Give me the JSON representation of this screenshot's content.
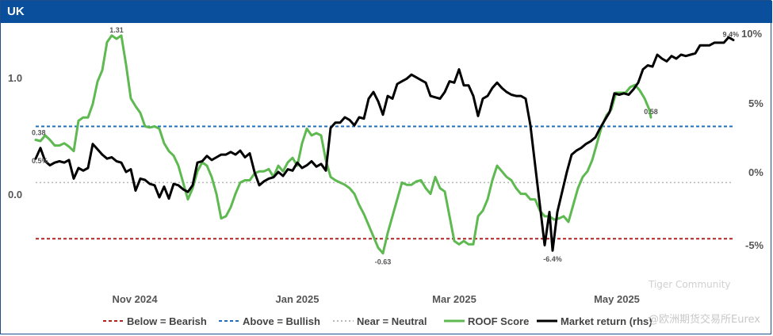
{
  "chart_data": {
    "type": "line",
    "title": "UK",
    "x_ticks": [
      "Nov 2024",
      "Jan 2025",
      "Mar 2025",
      "May 2025"
    ],
    "y_left": {
      "ticks": [
        "1.0",
        "0.0"
      ],
      "ylim": [
        -0.95,
        1.4
      ]
    },
    "y_right": {
      "ticks": [
        "10%",
        "5%",
        "0%",
        "-5%"
      ],
      "ylim": [
        -9.3,
        10.5
      ]
    },
    "reference_lines": [
      {
        "name": "Below = Bearish",
        "value": -0.5,
        "color": "#b22222",
        "style": "dashed"
      },
      {
        "name": "Above = Bullish",
        "value": 0.5,
        "color": "#1f6fc0",
        "style": "dashed"
      },
      {
        "name": "Near = Neutral",
        "value": 0.0,
        "color": "#b8b8b8",
        "style": "dotted"
      }
    ],
    "series": [
      {
        "name": "ROOF Score",
        "axis": "left",
        "color": "#5db950",
        "points": [
          [
            0,
            0.38
          ],
          [
            6,
            0.37
          ],
          [
            12,
            0.42
          ],
          [
            18,
            0.38
          ],
          [
            24,
            0.33
          ],
          [
            30,
            0.33
          ],
          [
            36,
            0.35
          ],
          [
            42,
            0.32
          ],
          [
            48,
            0.28
          ],
          [
            54,
            0.55
          ],
          [
            60,
            0.58
          ],
          [
            66,
            0.58
          ],
          [
            72,
            0.7
          ],
          [
            78,
            0.9
          ],
          [
            84,
            1.0
          ],
          [
            90,
            1.25
          ],
          [
            96,
            1.31
          ],
          [
            102,
            1.28
          ],
          [
            108,
            1.31
          ],
          [
            114,
            1.05
          ],
          [
            120,
            0.75
          ],
          [
            126,
            0.68
          ],
          [
            132,
            0.62
          ],
          [
            138,
            0.5
          ],
          [
            144,
            0.49
          ],
          [
            150,
            0.5
          ],
          [
            156,
            0.48
          ],
          [
            162,
            0.35
          ],
          [
            168,
            0.28
          ],
          [
            174,
            0.24
          ],
          [
            180,
            0.15
          ],
          [
            186,
            0.0
          ],
          [
            192,
            -0.15
          ],
          [
            198,
            -0.05
          ],
          [
            204,
            0.1
          ],
          [
            210,
            0.18
          ],
          [
            216,
            0.15
          ],
          [
            222,
            0.05
          ],
          [
            228,
            -0.1
          ],
          [
            234,
            -0.32
          ],
          [
            240,
            -0.3
          ],
          [
            246,
            -0.22
          ],
          [
            252,
            -0.1
          ],
          [
            258,
            0.0
          ],
          [
            264,
            0.02
          ],
          [
            270,
            0.02
          ],
          [
            276,
            0.08
          ],
          [
            282,
            0.1
          ],
          [
            288,
            0.1
          ],
          [
            294,
            0.12
          ],
          [
            300,
            0.05
          ],
          [
            306,
            0.15
          ],
          [
            312,
            0.1
          ],
          [
            318,
            0.18
          ],
          [
            324,
            0.22
          ],
          [
            330,
            0.15
          ],
          [
            336,
            0.35
          ],
          [
            342,
            0.48
          ],
          [
            348,
            0.42
          ],
          [
            354,
            0.44
          ],
          [
            360,
            0.42
          ],
          [
            366,
            0.2
          ],
          [
            372,
            0.05
          ],
          [
            378,
            0.02
          ],
          [
            384,
            0.0
          ],
          [
            390,
            -0.02
          ],
          [
            396,
            -0.05
          ],
          [
            402,
            -0.1
          ],
          [
            408,
            -0.2
          ],
          [
            414,
            -0.28
          ],
          [
            420,
            -0.38
          ],
          [
            426,
            -0.48
          ],
          [
            432,
            -0.58
          ],
          [
            438,
            -0.63
          ],
          [
            444,
            -0.45
          ],
          [
            450,
            -0.3
          ],
          [
            456,
            -0.15
          ],
          [
            462,
            0.0
          ],
          [
            468,
            -0.02
          ],
          [
            474,
            -0.02
          ],
          [
            480,
            0.01
          ],
          [
            486,
            0.02
          ],
          [
            492,
            -0.05
          ],
          [
            498,
            -0.1
          ],
          [
            504,
            0.05
          ],
          [
            510,
            -0.05
          ],
          [
            516,
            -0.08
          ],
          [
            522,
            -0.3
          ],
          [
            528,
            -0.52
          ],
          [
            534,
            -0.55
          ],
          [
            540,
            -0.52
          ],
          [
            546,
            -0.55
          ],
          [
            552,
            -0.55
          ],
          [
            558,
            -0.3
          ],
          [
            564,
            -0.25
          ],
          [
            570,
            -0.15
          ],
          [
            576,
            0.02
          ],
          [
            582,
            0.15
          ],
          [
            588,
            0.1
          ],
          [
            594,
            0.05
          ],
          [
            600,
            0.02
          ],
          [
            606,
            -0.05
          ],
          [
            612,
            -0.1
          ],
          [
            618,
            -0.1
          ],
          [
            624,
            -0.15
          ],
          [
            630,
            -0.15
          ],
          [
            636,
            -0.25
          ],
          [
            642,
            -0.3
          ],
          [
            648,
            -0.3
          ],
          [
            654,
            -0.33
          ],
          [
            660,
            -0.32
          ],
          [
            666,
            -0.3
          ],
          [
            672,
            -0.35
          ],
          [
            678,
            -0.2
          ],
          [
            684,
            -0.05
          ],
          [
            690,
            0.05
          ],
          [
            696,
            0.1
          ],
          [
            702,
            0.2
          ],
          [
            708,
            0.35
          ],
          [
            714,
            0.5
          ],
          [
            720,
            0.6
          ],
          [
            726,
            0.65
          ],
          [
            732,
            0.8
          ],
          [
            738,
            0.8
          ],
          [
            744,
            0.8
          ],
          [
            750,
            0.85
          ],
          [
            756,
            0.87
          ],
          [
            762,
            0.82
          ],
          [
            768,
            0.75
          ],
          [
            774,
            0.65
          ],
          [
            776,
            0.58
          ]
        ],
        "labels": [
          {
            "text": "1.31",
            "x": 102,
            "y": 1.31
          },
          {
            "text": "-0.63",
            "x": 438,
            "y": -0.63
          },
          {
            "text": "0.58",
            "x": 776,
            "y": 0.58
          }
        ]
      },
      {
        "name": "Market return (rhs)",
        "axis": "right",
        "color": "#000000",
        "points": [
          [
            0,
            0.5
          ],
          [
            6,
            1.3
          ],
          [
            12,
            0.3
          ],
          [
            18,
            0.0
          ],
          [
            24,
            0.2
          ],
          [
            30,
            0.3
          ],
          [
            36,
            0.2
          ],
          [
            42,
            0.4
          ],
          [
            48,
            -1.0
          ],
          [
            54,
            -0.2
          ],
          [
            60,
            -0.4
          ],
          [
            66,
            -0.2
          ],
          [
            72,
            1.6
          ],
          [
            78,
            1.2
          ],
          [
            84,
            0.8
          ],
          [
            90,
            0.5
          ],
          [
            96,
            0.6
          ],
          [
            102,
            0.3
          ],
          [
            108,
            0.2
          ],
          [
            114,
            -0.5
          ],
          [
            120,
            -0.3
          ],
          [
            126,
            -1.9
          ],
          [
            132,
            -1.0
          ],
          [
            138,
            -1.1
          ],
          [
            144,
            -1.4
          ],
          [
            150,
            -1.5
          ],
          [
            156,
            -2.4
          ],
          [
            162,
            -1.6
          ],
          [
            168,
            -2.5
          ],
          [
            174,
            -1.4
          ],
          [
            180,
            -1.5
          ],
          [
            186,
            -1.8
          ],
          [
            192,
            -2.0
          ],
          [
            198,
            -1.5
          ],
          [
            204,
            0.2
          ],
          [
            210,
            0.3
          ],
          [
            216,
            0.7
          ],
          [
            222,
            0.4
          ],
          [
            228,
            0.6
          ],
          [
            234,
            0.8
          ],
          [
            240,
            0.8
          ],
          [
            246,
            1.0
          ],
          [
            252,
            0.8
          ],
          [
            258,
            1.1
          ],
          [
            264,
            0.6
          ],
          [
            270,
            0.9
          ],
          [
            276,
            -0.5
          ],
          [
            282,
            -1.5
          ],
          [
            288,
            -1.2
          ],
          [
            294,
            -1.0
          ],
          [
            300,
            -0.9
          ],
          [
            306,
            -0.5
          ],
          [
            312,
            -0.8
          ],
          [
            318,
            -0.3
          ],
          [
            324,
            -0.4
          ],
          [
            330,
            0.2
          ],
          [
            336,
            -0.2
          ],
          [
            342,
            0.0
          ],
          [
            348,
            0.3
          ],
          [
            354,
            -0.1
          ],
          [
            360,
            0.1
          ],
          [
            366,
            -0.4
          ],
          [
            372,
            2.8
          ],
          [
            378,
            3.2
          ],
          [
            384,
            3.2
          ],
          [
            390,
            3.6
          ],
          [
            396,
            3.4
          ],
          [
            402,
            3.0
          ],
          [
            408,
            3.6
          ],
          [
            414,
            3.5
          ],
          [
            420,
            5.0
          ],
          [
            426,
            5.5
          ],
          [
            432,
            4.8
          ],
          [
            438,
            3.8
          ],
          [
            444,
            5.2
          ],
          [
            450,
            5.0
          ],
          [
            456,
            6.1
          ],
          [
            462,
            6.3
          ],
          [
            468,
            6.5
          ],
          [
            474,
            6.8
          ],
          [
            480,
            6.6
          ],
          [
            486,
            6.4
          ],
          [
            492,
            6.2
          ],
          [
            498,
            5.2
          ],
          [
            504,
            5.1
          ],
          [
            510,
            5.0
          ],
          [
            516,
            5.5
          ],
          [
            522,
            6.3
          ],
          [
            528,
            6.2
          ],
          [
            534,
            7.2
          ],
          [
            540,
            6.0
          ],
          [
            546,
            6.0
          ],
          [
            552,
            5.2
          ],
          [
            558,
            3.7
          ],
          [
            564,
            5.0
          ],
          [
            570,
            5.2
          ],
          [
            576,
            5.8
          ],
          [
            582,
            6.2
          ],
          [
            588,
            5.8
          ],
          [
            594,
            5.5
          ],
          [
            600,
            5.3
          ],
          [
            606,
            5.2
          ],
          [
            612,
            5.2
          ],
          [
            618,
            5.0
          ],
          [
            624,
            3.0
          ],
          [
            630,
            0.0
          ],
          [
            636,
            -3.0
          ],
          [
            642,
            -6.0
          ],
          [
            648,
            -3.5
          ],
          [
            652,
            -6.4
          ],
          [
            658,
            -3.5
          ],
          [
            664,
            -2.0
          ],
          [
            670,
            -0.5
          ],
          [
            676,
            0.8
          ],
          [
            682,
            1.1
          ],
          [
            688,
            1.3
          ],
          [
            694,
            1.6
          ],
          [
            700,
            1.8
          ],
          [
            706,
            2.1
          ],
          [
            712,
            2.8
          ],
          [
            718,
            3.4
          ],
          [
            724,
            4.0
          ],
          [
            730,
            5.4
          ],
          [
            736,
            5.3
          ],
          [
            742,
            5.4
          ],
          [
            748,
            5.3
          ],
          [
            754,
            5.7
          ],
          [
            760,
            6.2
          ],
          [
            766,
            7.2
          ],
          [
            772,
            7.5
          ],
          [
            778,
            7.4
          ],
          [
            784,
            8.3
          ],
          [
            790,
            8.0
          ],
          [
            796,
            7.8
          ],
          [
            802,
            8.2
          ],
          [
            808,
            8.0
          ],
          [
            814,
            8.3
          ],
          [
            820,
            8.2
          ],
          [
            826,
            8.3
          ],
          [
            832,
            8.4
          ],
          [
            838,
            9.0
          ],
          [
            844,
            9.0
          ],
          [
            850,
            9.0
          ],
          [
            856,
            9.2
          ],
          [
            862,
            9.2
          ],
          [
            868,
            9.2
          ],
          [
            874,
            9.6
          ],
          [
            880,
            9.4
          ]
        ],
        "labels": [
          {
            "text": "-6.4%",
            "x": 652,
            "y": -6.4
          },
          {
            "text": "9.4%",
            "x": 880,
            "y": 9.4
          }
        ]
      }
    ],
    "legend": [
      "Below = Bearish",
      "Above = Bullish",
      "Near = Neutral",
      "ROOF Score",
      "Market return (rhs)"
    ],
    "legend_placement": "bottom"
  },
  "watermark": {
    "community": "Tiger Community",
    "source": "@欧洲期货交易所Eurex"
  }
}
